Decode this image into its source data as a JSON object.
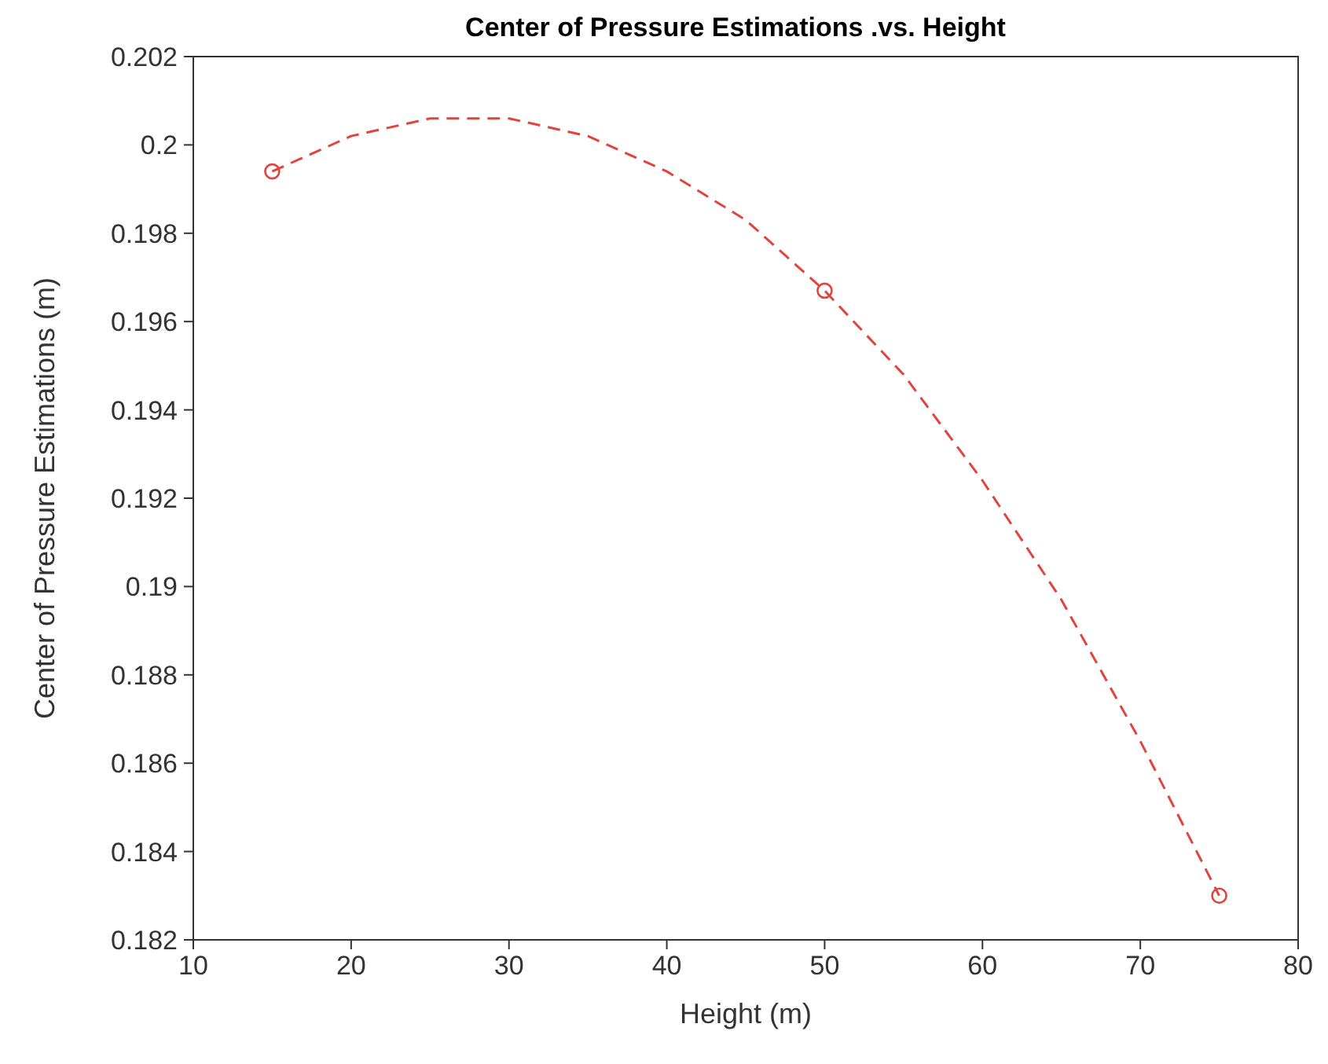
{
  "chart_data": {
    "type": "scatter",
    "title": "Center of Pressure Estimations .vs. Height",
    "xlabel": "Height (m)",
    "ylabel": "Center of Pressure Estimations (m)",
    "xlim": [
      10,
      80
    ],
    "xticks": [
      10,
      20,
      30,
      40,
      50,
      60,
      70,
      80
    ],
    "ylim": [
      0.182,
      0.202
    ],
    "yticks": [
      0.182,
      0.184,
      0.186,
      0.188,
      0.19,
      0.192,
      0.194,
      0.196,
      0.198,
      0.2,
      0.202
    ],
    "series": [
      {
        "type": "line",
        "color": "#e0443c",
        "marker": "none",
        "line_style": "dashed",
        "x": [
          15,
          20,
          25,
          27.5,
          30,
          35,
          40,
          45,
          50,
          55,
          60,
          65,
          70,
          75
        ],
        "values": [
          0.1994,
          0.2002,
          0.2006,
          0.2006,
          0.2006,
          0.2002,
          0.1994,
          0.1983,
          0.1967,
          0.1948,
          0.1924,
          0.1897,
          0.1865,
          0.183
        ]
      },
      {
        "type": "scatter",
        "color": "#e0443c",
        "marker": "circle",
        "x": [
          15,
          50,
          75
        ],
        "values": [
          0.1994,
          0.1967,
          0.183
        ]
      }
    ]
  }
}
